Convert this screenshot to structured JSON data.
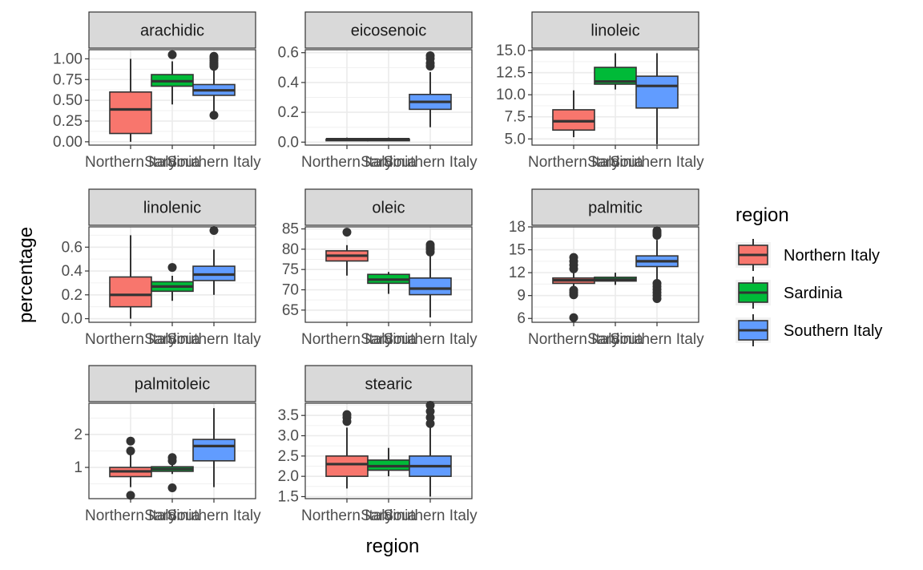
{
  "chart_data": {
    "type": "boxplot",
    "facet_wrap": "fatty acid",
    "xlabel": "region",
    "ylabel": "percentage",
    "categories": [
      "Northern Italy",
      "Sardinia",
      "Southern Italy"
    ],
    "legend": {
      "title": "region",
      "placement": "right",
      "entries": [
        {
          "label": "Northern Italy",
          "color": "#F8766D"
        },
        {
          "label": "Sardinia",
          "color": "#00BA38"
        },
        {
          "label": "Southern Italy",
          "color": "#619CFF"
        }
      ]
    },
    "grid": true,
    "panels": [
      {
        "title": "arachidic",
        "ylim": [
          -0.04,
          1.11
        ],
        "yticks": [
          0,
          0.25,
          0.5,
          0.75,
          1.0
        ],
        "yticklabels": [
          "0.00",
          "0.25",
          "0.50",
          "0.75",
          "1.00"
        ],
        "boxes": [
          {
            "region": "Northern Italy",
            "min": 0.0,
            "q1": 0.1,
            "median": 0.39,
            "q3": 0.6,
            "max": 1.0,
            "outliers": []
          },
          {
            "region": "Sardinia",
            "min": 0.45,
            "q1": 0.67,
            "median": 0.73,
            "q3": 0.81,
            "max": 0.97,
            "outliers": [
              1.05
            ]
          },
          {
            "region": "Southern Italy",
            "min": 0.34,
            "q1": 0.56,
            "median": 0.62,
            "q3": 0.69,
            "max": 0.88,
            "outliers": [
              0.32,
              0.91,
              0.93,
              0.95,
              0.98,
              1.01,
              1.03
            ]
          }
        ]
      },
      {
        "title": "eicosenoic",
        "ylim": [
          -0.02,
          0.62
        ],
        "yticks": [
          0,
          0.2,
          0.4,
          0.6
        ],
        "yticklabels": [
          "0.0",
          "0.2",
          "0.4",
          "0.6"
        ],
        "boxes": [
          {
            "region": "Northern Italy",
            "min": 0.01,
            "q1": 0.01,
            "median": 0.02,
            "q3": 0.02,
            "max": 0.03,
            "outliers": []
          },
          {
            "region": "Sardinia",
            "min": 0.01,
            "q1": 0.01,
            "median": 0.02,
            "q3": 0.02,
            "max": 0.03,
            "outliers": []
          },
          {
            "region": "Southern Italy",
            "min": 0.1,
            "q1": 0.22,
            "median": 0.27,
            "q3": 0.32,
            "max": 0.47,
            "outliers": [
              0.51,
              0.53,
              0.56,
              0.58
            ]
          }
        ]
      },
      {
        "title": "linoleic",
        "ylim": [
          4.3,
          15.1
        ],
        "yticks": [
          5.0,
          7.5,
          10.0,
          12.5,
          15.0
        ],
        "yticklabels": [
          "5.0",
          "7.5",
          "10.0",
          "12.5",
          "15.0"
        ],
        "boxes": [
          {
            "region": "Northern Italy",
            "min": 5.2,
            "q1": 6.0,
            "median": 7.0,
            "q3": 8.3,
            "max": 10.5,
            "outliers": []
          },
          {
            "region": "Sardinia",
            "min": 10.6,
            "q1": 11.2,
            "median": 11.5,
            "q3": 13.1,
            "max": 14.7,
            "outliers": []
          },
          {
            "region": "Southern Italy",
            "min": 4.4,
            "q1": 8.5,
            "median": 11.0,
            "q3": 12.1,
            "max": 14.7,
            "outliers": []
          }
        ]
      },
      {
        "title": "linolenic",
        "ylim": [
          -0.03,
          0.77
        ],
        "yticks": [
          0,
          0.2,
          0.4,
          0.6
        ],
        "yticklabels": [
          "0.0",
          "0.2",
          "0.4",
          "0.6"
        ],
        "boxes": [
          {
            "region": "Northern Italy",
            "min": 0.0,
            "q1": 0.1,
            "median": 0.2,
            "q3": 0.35,
            "max": 0.7,
            "outliers": []
          },
          {
            "region": "Sardinia",
            "min": 0.15,
            "q1": 0.23,
            "median": 0.27,
            "q3": 0.31,
            "max": 0.36,
            "outliers": [
              0.43
            ]
          },
          {
            "region": "Southern Italy",
            "min": 0.2,
            "q1": 0.32,
            "median": 0.37,
            "q3": 0.44,
            "max": 0.58,
            "outliers": [
              0.74
            ]
          }
        ]
      },
      {
        "title": "oleic",
        "ylim": [
          62.0,
          85.5
        ],
        "yticks": [
          65,
          70,
          75,
          80,
          85
        ],
        "yticklabels": [
          "65",
          "70",
          "75",
          "80",
          "85"
        ],
        "boxes": [
          {
            "region": "Northern Italy",
            "min": 73.5,
            "q1": 77.1,
            "median": 78.4,
            "q3": 79.6,
            "max": 81.0,
            "outliers": [
              84.2
            ]
          },
          {
            "region": "Sardinia",
            "min": 69.0,
            "q1": 71.6,
            "median": 72.5,
            "q3": 73.8,
            "max": 74.4,
            "outliers": []
          },
          {
            "region": "Southern Italy",
            "min": 63.2,
            "q1": 68.8,
            "median": 70.3,
            "q3": 72.9,
            "max": 78.7,
            "outliers": [
              79.3,
              80.0,
              80.5,
              81.1
            ]
          }
        ]
      },
      {
        "title": "palmitic",
        "ylim": [
          5.5,
          18.0
        ],
        "yticks": [
          6,
          9,
          12,
          15,
          18
        ],
        "yticklabels": [
          "6",
          "9",
          "12",
          "15",
          "18"
        ],
        "boxes": [
          {
            "region": "Northern Italy",
            "min": 10.0,
            "q1": 10.6,
            "median": 11.0,
            "q3": 11.3,
            "max": 12.0,
            "outliers": [
              6.1,
              9.1,
              9.4,
              9.7,
              12.5,
              13.0,
              13.5,
              14.0
            ]
          },
          {
            "region": "Sardinia",
            "min": 10.4,
            "q1": 10.9,
            "median": 11.1,
            "q3": 11.4,
            "max": 12.0,
            "outliers": []
          },
          {
            "region": "Southern Italy",
            "min": 10.9,
            "q1": 12.8,
            "median": 13.5,
            "q3": 14.2,
            "max": 16.3,
            "outliers": [
              8.6,
              9.0,
              9.4,
              9.8,
              10.2,
              10.6,
              16.9,
              17.1,
              17.3,
              17.5
            ]
          }
        ]
      },
      {
        "title": "palmitoleic",
        "ylim": [
          0.05,
          2.95
        ],
        "yticks": [
          1,
          2
        ],
        "yticklabels": [
          "1",
          "2"
        ],
        "boxes": [
          {
            "region": "Northern Italy",
            "min": 0.4,
            "q1": 0.72,
            "median": 0.88,
            "q3": 1.0,
            "max": 1.4,
            "outliers": [
              0.15,
              1.5,
              1.8
            ]
          },
          {
            "region": "Sardinia",
            "min": 0.8,
            "q1": 0.88,
            "median": 0.95,
            "q3": 1.02,
            "max": 1.1,
            "outliers": [
              0.38,
              1.2,
              1.3
            ]
          },
          {
            "region": "Southern Italy",
            "min": 0.4,
            "q1": 1.2,
            "median": 1.65,
            "q3": 1.85,
            "max": 2.8,
            "outliers": []
          }
        ]
      },
      {
        "title": "stearic",
        "ylim": [
          1.45,
          3.8
        ],
        "yticks": [
          1.5,
          2.0,
          2.5,
          3.0,
          3.5
        ],
        "yticklabels": [
          "1.5",
          "2.0",
          "2.5",
          "3.0",
          "3.5"
        ],
        "boxes": [
          {
            "region": "Northern Italy",
            "min": 1.7,
            "q1": 2.0,
            "median": 2.3,
            "q3": 2.5,
            "max": 3.2,
            "outliers": [
              3.35,
              3.45,
              3.52
            ]
          },
          {
            "region": "Sardinia",
            "min": 2.0,
            "q1": 2.15,
            "median": 2.25,
            "q3": 2.4,
            "max": 2.7,
            "outliers": []
          },
          {
            "region": "Southern Italy",
            "min": 1.5,
            "q1": 2.0,
            "median": 2.25,
            "q3": 2.5,
            "max": 3.2,
            "outliers": [
              3.3,
              3.45,
              3.6,
              3.75
            ]
          }
        ]
      }
    ]
  }
}
